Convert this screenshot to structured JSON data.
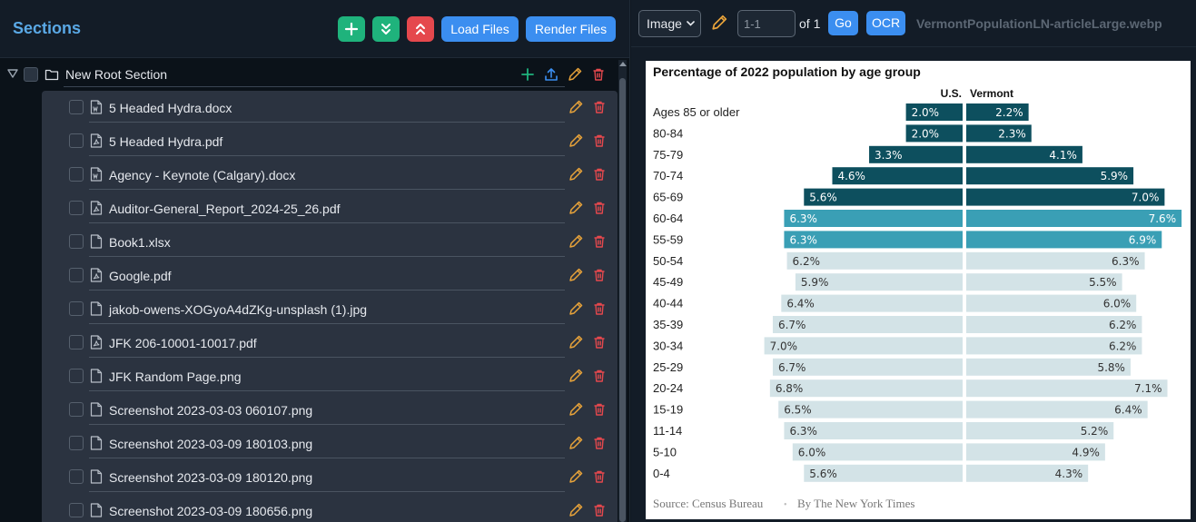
{
  "left_panel": {
    "title": "Sections",
    "buttons": {
      "add": "add-section",
      "expand": "expand-all",
      "collapse": "collapse-all",
      "load": "Load Files",
      "render": "Render Files"
    },
    "root_section": {
      "label": "New Root Section"
    },
    "files": [
      {
        "name": "5 Headed Hydra.docx",
        "type": "word"
      },
      {
        "name": "5 Headed Hydra.pdf",
        "type": "pdf"
      },
      {
        "name": "Agency - Keynote (Calgary).docx",
        "type": "word"
      },
      {
        "name": "Auditor-General_Report_2024-25_26.pdf",
        "type": "pdf"
      },
      {
        "name": "Book1.xlsx",
        "type": "file"
      },
      {
        "name": "Google.pdf",
        "type": "pdf"
      },
      {
        "name": "jakob-owens-XOGyoA4dZKg-unsplash (1).jpg",
        "type": "file"
      },
      {
        "name": "JFK 206-10001-10017.pdf",
        "type": "pdf"
      },
      {
        "name": "JFK Random Page.png",
        "type": "file"
      },
      {
        "name": "Screenshot 2023-03-03 060107.png",
        "type": "file"
      },
      {
        "name": "Screenshot 2023-03-09 180103.png",
        "type": "file"
      },
      {
        "name": "Screenshot 2023-03-09 180120.png",
        "type": "file"
      },
      {
        "name": "Screenshot 2023-03-09 180656.png",
        "type": "file"
      }
    ]
  },
  "viewer": {
    "mode_select": "Image",
    "page_input_placeholder": "1-1",
    "of_label": "of 1",
    "go_label": "Go",
    "ocr_label": "OCR",
    "filename": "VermontPopulationLN-articleLarge.webp"
  },
  "colors": {
    "accent_blue": "#3b8ef0",
    "green": "#1fb37c",
    "red": "#e5484d",
    "pencil": "#e8a33a",
    "bar_dark": "#0d4f5e",
    "bar_mid": "#3a9fb5",
    "bar_light": "#d3e3e7"
  },
  "chart_data": {
    "type": "bar",
    "title": "Percentage of 2022 population by age group",
    "series_labels": [
      "U.S.",
      "Vermont"
    ],
    "categories": [
      "Ages 85 or older",
      "80-84",
      "75-79",
      "70-74",
      "65-69",
      "60-64",
      "55-59",
      "50-54",
      "45-49",
      "40-44",
      "35-39",
      "30-34",
      "25-29",
      "20-24",
      "15-19",
      "11-14",
      "5-10",
      "0-4"
    ],
    "us": [
      2.0,
      2.0,
      3.3,
      4.6,
      5.6,
      6.3,
      6.3,
      6.2,
      5.9,
      6.4,
      6.7,
      7.0,
      6.7,
      6.8,
      6.5,
      6.3,
      6.0,
      5.6
    ],
    "vermont": [
      2.2,
      2.3,
      4.1,
      5.9,
      7.0,
      7.6,
      6.9,
      6.3,
      5.5,
      6.0,
      6.2,
      6.2,
      5.8,
      7.1,
      6.4,
      5.2,
      4.9,
      4.3
    ],
    "labels_us": [
      "2.0%",
      "2.0%",
      "3.3%",
      "4.6%",
      "5.6%",
      "6.3%",
      "6.3%",
      "6.2%",
      "5.9%",
      "6.4%",
      "6.7%",
      "7.0%",
      "6.7%",
      "6.8%",
      "6.5%",
      "6.3%",
      "6.0%",
      "5.6%"
    ],
    "labels_vermont": [
      "2.2%",
      "2.3%",
      "4.1%",
      "5.9%",
      "7.0%",
      "7.6%",
      "6.9%",
      "6.3%",
      "5.5%",
      "6.0%",
      "6.2%",
      "6.2%",
      "5.8%",
      "7.1%",
      "6.4%",
      "5.2%",
      "4.9%",
      "4.3%"
    ],
    "shade": [
      "dark",
      "dark",
      "dark",
      "dark",
      "dark",
      "mid",
      "mid",
      "light",
      "light",
      "light",
      "light",
      "light",
      "light",
      "light",
      "light",
      "light",
      "light",
      "light"
    ],
    "source": "Source: Census Bureau",
    "separator": "•",
    "credit": "By The New York Times"
  }
}
